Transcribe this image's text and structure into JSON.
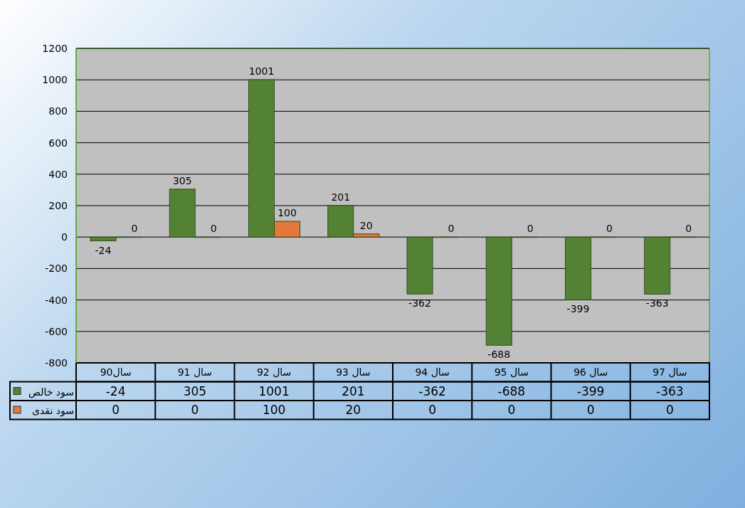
{
  "chart_data": {
    "type": "bar",
    "categories": [
      "سال90",
      "سال 91",
      "سال 92",
      "سال 93",
      "سال 94",
      "سال 95",
      "سال 96",
      "سال 97"
    ],
    "series": [
      {
        "name": "سود خالص",
        "color": "#548235",
        "values": [
          -24,
          305,
          1001,
          201,
          -362,
          -688,
          -399,
          -363
        ],
        "value_labels": [
          "-24",
          "305",
          "1001",
          "201",
          "-362",
          "-688",
          "-399",
          "-363"
        ]
      },
      {
        "name": "سود نقدی",
        "color": "#e2783a",
        "values": [
          0,
          0,
          100,
          20,
          0,
          0,
          0,
          0
        ],
        "value_labels": [
          "0",
          "0",
          "100",
          "20",
          "0",
          "0",
          "0",
          "0"
        ]
      }
    ],
    "ylim": [
      -800,
      1200
    ],
    "yticks": [
      -800,
      -600,
      -400,
      -200,
      0,
      200,
      400,
      600,
      800,
      1000,
      1200
    ],
    "annotations": [
      "-24",
      "305",
      "1001",
      "201",
      "-362",
      "-688",
      "-399",
      "-363",
      "0",
      "0",
      "100",
      "20",
      "0",
      "0",
      "0",
      "0"
    ],
    "grid": "y",
    "legend": "bottom",
    "data_labels": true
  }
}
